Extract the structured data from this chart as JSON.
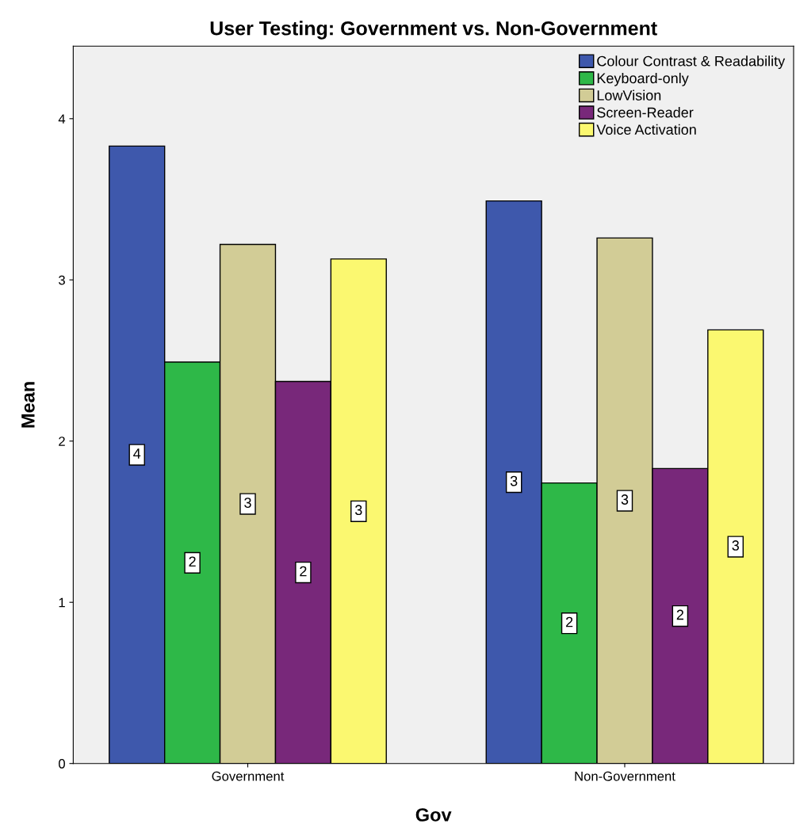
{
  "chart_data": {
    "type": "bar",
    "title": "User Testing: Government vs. Non-Government",
    "xlabel": "Gov",
    "ylabel": "Mean",
    "categories": [
      "Government",
      "Non-Government"
    ],
    "series": [
      {
        "name": "Colour Contrast & Readability",
        "color": "#3e58ac",
        "values": [
          3.83,
          3.49
        ],
        "value_labels": [
          "4",
          "3"
        ]
      },
      {
        "name": "Keyboard-only",
        "color": "#2eb848",
        "values": [
          2.49,
          1.74
        ],
        "value_labels": [
          "2",
          "2"
        ]
      },
      {
        "name": "LowVision",
        "color": "#d2cc96",
        "values": [
          3.22,
          3.26
        ],
        "value_labels": [
          "3",
          "3"
        ]
      },
      {
        "name": "Screen-Reader",
        "color": "#78287a",
        "values": [
          2.37,
          1.83
        ],
        "value_labels": [
          "2",
          "2"
        ]
      },
      {
        "name": "Voice Activation",
        "color": "#fbf870",
        "values": [
          3.13,
          2.69
        ],
        "value_labels": [
          "3",
          "3"
        ]
      }
    ],
    "ylim": [
      0,
      4.45
    ],
    "yticks": [
      0,
      1,
      2,
      3,
      4
    ],
    "grid": false,
    "legend": "top right"
  }
}
